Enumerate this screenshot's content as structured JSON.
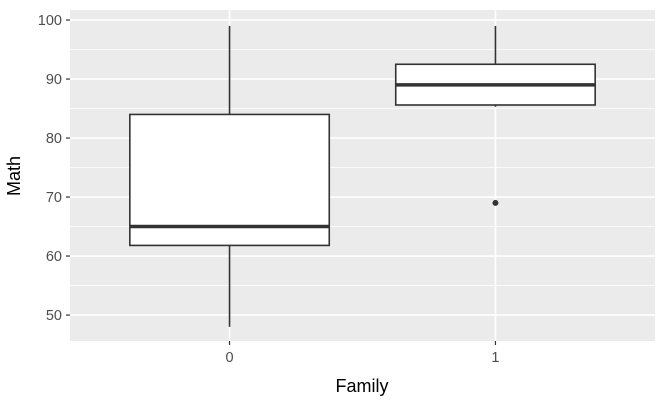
{
  "chart_data": {
    "type": "boxplot",
    "xlabel": "Family",
    "ylabel": "Math",
    "categories": [
      "0",
      "1"
    ],
    "ylim": [
      45.6,
      101.7
    ],
    "yticks": [
      50,
      60,
      70,
      80,
      90,
      100
    ],
    "grid": true,
    "boxes": [
      {
        "category": "0",
        "whisker_low": 48,
        "q1": 61.8,
        "median": 65,
        "q3": 84,
        "whisker_high": 99,
        "outliers": []
      },
      {
        "category": "1",
        "whisker_low": 85.3,
        "q1": 85.6,
        "median": 89,
        "q3": 92.5,
        "whisker_high": 99,
        "outliers": [
          69
        ]
      }
    ],
    "colors": {
      "panel": "#ebebeb",
      "grid": "#ffffff",
      "box_fill": "#ffffff",
      "box_line": "#333333"
    }
  }
}
